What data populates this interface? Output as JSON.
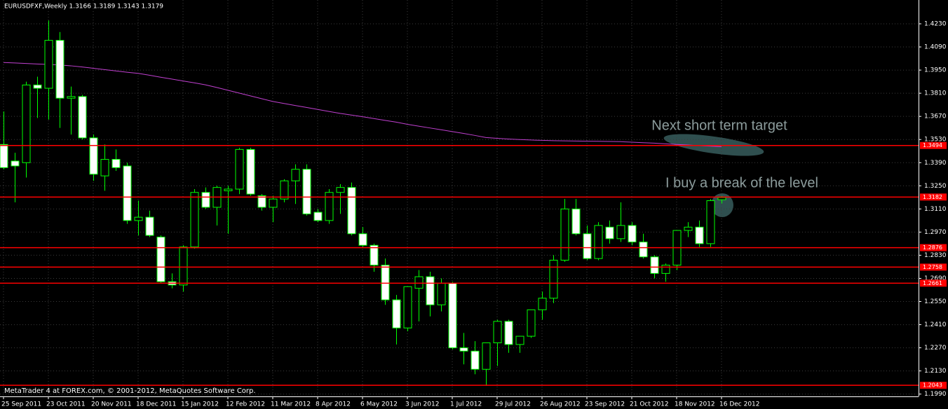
{
  "chart_data": {
    "type": "candlestick",
    "title": "EURUSDFXF,Weekly  1.3166 1.3189 1.3143 1.3179",
    "footer": "MetaTrader 4 at FOREX.com, © 2001-2012, MetaQuotes Software Corp.",
    "categories": [
      "25 Sep 2011",
      null,
      null,
      null,
      "23 Oct 2011",
      null,
      null,
      null,
      "20 Nov 2011",
      null,
      null,
      null,
      "18 Dec 2011",
      null,
      null,
      null,
      "15 Jan 2012",
      null,
      null,
      null,
      "12 Feb 2012",
      null,
      null,
      null,
      "11 Mar 2012",
      null,
      null,
      null,
      "8 Apr 2012",
      null,
      null,
      null,
      "6 May 2012",
      null,
      null,
      null,
      "3 Jun 2012",
      null,
      null,
      null,
      "1 Jul 2012",
      null,
      null,
      null,
      "29 Jul 2012",
      null,
      null,
      null,
      "26 Aug 2012",
      null,
      null,
      null,
      "23 Sep 2012",
      null,
      null,
      null,
      "21 Oct 2012",
      null,
      null,
      null,
      "18 Nov 2012",
      null,
      null,
      null,
      "16 Dec 2012"
    ],
    "open": [
      1.35,
      1.34,
      1.339,
      1.386,
      1.384,
      1.413,
      1.378,
      1.379,
      1.354,
      1.331,
      1.341,
      1.337,
      1.304,
      1.306,
      1.294,
      1.267,
      1.265,
      1.288,
      1.321,
      1.312,
      1.322,
      1.323,
      1.347,
      1.319,
      1.312,
      1.317,
      1.328,
      1.335,
      1.309,
      1.304,
      1.321,
      1.324,
      1.296,
      1.289,
      1.277,
      1.256,
      1.239,
      1.263,
      1.27,
      1.253,
      1.266,
      1.227,
      1.225,
      1.214,
      1.23,
      1.243,
      1.229,
      1.234,
      1.25,
      1.257,
      1.28,
      1.311,
      1.296,
      1.281,
      1.3,
      1.293,
      1.301,
      1.291,
      1.282,
      1.272,
      1.277,
      1.298,
      1.3,
      1.29,
      1.3166
    ],
    "high": [
      1.37,
      1.345,
      1.388,
      1.391,
      1.425,
      1.418,
      1.385,
      1.38,
      1.356,
      1.35,
      1.347,
      1.339,
      1.316,
      1.31,
      1.295,
      1.272,
      1.289,
      1.323,
      1.324,
      1.325,
      1.325,
      1.348,
      1.348,
      1.32,
      1.319,
      1.329,
      1.338,
      1.338,
      1.311,
      1.323,
      1.326,
      1.327,
      1.3,
      1.29,
      1.281,
      1.259,
      1.264,
      1.274,
      1.273,
      1.269,
      1.267,
      1.236,
      1.231,
      1.229,
      1.244,
      1.244,
      1.234,
      1.25,
      1.261,
      1.283,
      1.317,
      1.317,
      1.301,
      1.303,
      1.304,
      1.315,
      1.303,
      1.296,
      1.283,
      1.278,
      1.298,
      1.303,
      1.304,
      1.317,
      1.3189
    ],
    "low": [
      1.335,
      1.315,
      1.33,
      1.366,
      1.365,
      1.36,
      1.356,
      1.353,
      1.328,
      1.322,
      1.334,
      1.302,
      1.295,
      1.294,
      1.266,
      1.263,
      1.261,
      1.287,
      1.311,
      1.301,
      1.296,
      1.32,
      1.319,
      1.31,
      1.303,
      1.315,
      1.314,
      1.307,
      1.303,
      1.302,
      1.308,
      1.295,
      1.288,
      1.273,
      1.253,
      1.229,
      1.237,
      1.243,
      1.246,
      1.249,
      1.226,
      1.217,
      1.211,
      1.204,
      1.216,
      1.224,
      1.224,
      1.233,
      1.244,
      1.254,
      1.279,
      1.295,
      1.28,
      1.28,
      1.29,
      1.291,
      1.289,
      1.281,
      1.269,
      1.267,
      1.274,
      1.294,
      1.288,
      1.288,
      1.3143
    ],
    "close": [
      1.336,
      1.337,
      1.386,
      1.384,
      1.413,
      1.378,
      1.379,
      1.354,
      1.332,
      1.341,
      1.336,
      1.304,
      1.306,
      1.295,
      1.267,
      1.265,
      1.288,
      1.321,
      1.312,
      1.324,
      1.323,
      1.347,
      1.32,
      1.312,
      1.317,
      1.328,
      1.335,
      1.308,
      1.304,
      1.321,
      1.324,
      1.296,
      1.289,
      1.277,
      1.256,
      1.239,
      1.264,
      1.27,
      1.253,
      1.266,
      1.227,
      1.225,
      1.214,
      1.23,
      1.243,
      1.229,
      1.234,
      1.25,
      1.257,
      1.28,
      1.311,
      1.296,
      1.281,
      1.301,
      1.293,
      1.301,
      1.291,
      1.282,
      1.272,
      1.277,
      1.298,
      1.3,
      1.29,
      1.316,
      1.3179
    ],
    "ma": {
      "color": "#c040d0",
      "values": [
        1.3996,
        1.3993,
        1.399,
        1.3987,
        1.3984,
        1.3981,
        1.3976,
        1.3969,
        1.3961,
        1.3953,
        1.3945,
        1.3937,
        1.393,
        1.3919,
        1.3907,
        1.3896,
        1.3884,
        1.3873,
        1.3861,
        1.3845,
        1.3828,
        1.3811,
        1.3794,
        1.3777,
        1.376,
        1.3748,
        1.3736,
        1.3724,
        1.3712,
        1.37,
        1.3688,
        1.3678,
        1.3668,
        1.3657,
        1.3646,
        1.3635,
        1.3622,
        1.3611,
        1.36,
        1.3589,
        1.3578,
        1.3567,
        1.3555,
        1.3542,
        1.3537,
        1.3533,
        1.353,
        1.3527,
        1.3525,
        1.3523,
        1.3522,
        1.3521,
        1.352,
        1.3519,
        1.3518,
        1.3517,
        1.3514,
        1.3511,
        1.3508,
        1.3504,
        1.35,
        1.3497,
        1.3493,
        1.349,
        1.3487
      ]
    },
    "levels": {
      "color": "#ff0000",
      "values": [
        1.3494,
        1.3182,
        1.2876,
        1.2758,
        1.2661,
        1.2043
      ]
    },
    "annotations": [
      "Next short term target",
      "I buy a break of the level"
    ],
    "bull_color": "#000000",
    "bear_color": "#ffffff",
    "wick_color": "#00ff00",
    "ylim": [
      1.1976,
      1.4374
    ],
    "yticks": [
      {
        "value": 1.423,
        "label": "1.4230"
      },
      {
        "value": 1.409,
        "label": "1.4090"
      },
      {
        "value": 1.395,
        "label": "1.3950"
      },
      {
        "value": 1.381,
        "label": "1.3810"
      },
      {
        "value": 1.367,
        "label": "1.3670"
      },
      {
        "value": 1.353,
        "label": "1.3530"
      },
      {
        "value": 1.339,
        "label": "1.3390"
      },
      {
        "value": 1.325,
        "label": "1.3250"
      },
      {
        "value": 1.311,
        "label": "1.3110"
      },
      {
        "value": 1.297,
        "label": "1.2970"
      },
      {
        "value": 1.283,
        "label": "1.2830"
      },
      {
        "value": 1.269,
        "label": "1.2690"
      },
      {
        "value": 1.255,
        "label": "1.2550"
      },
      {
        "value": 1.241,
        "label": "1.2410"
      },
      {
        "value": 1.227,
        "label": "1.2270"
      },
      {
        "value": 1.213,
        "label": "1.2130"
      },
      {
        "value": 1.199,
        "label": "1.1990"
      }
    ],
    "grid": true
  }
}
